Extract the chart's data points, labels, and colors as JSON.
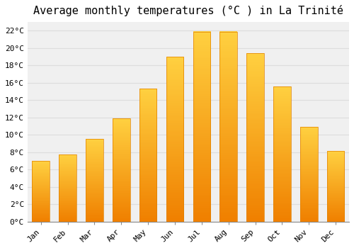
{
  "title": "Average monthly temperatures (°C ) in La Trinité",
  "months": [
    "Jan",
    "Feb",
    "Mar",
    "Apr",
    "May",
    "Jun",
    "Jul",
    "Aug",
    "Sep",
    "Oct",
    "Nov",
    "Dec"
  ],
  "values": [
    7.0,
    7.7,
    9.5,
    11.9,
    15.3,
    19.0,
    21.9,
    21.9,
    19.4,
    15.6,
    10.9,
    8.1
  ],
  "bar_color": "#FFA500",
  "bar_edge_color": "#E08000",
  "background_color": "#FFFFFF",
  "plot_bg_color": "#F0F0F0",
  "grid_color": "#DDDDDD",
  "ylim": [
    0,
    23
  ],
  "yticks": [
    0,
    2,
    4,
    6,
    8,
    10,
    12,
    14,
    16,
    18,
    20,
    22
  ],
  "title_fontsize": 11,
  "tick_fontsize": 8,
  "font_family": "monospace"
}
